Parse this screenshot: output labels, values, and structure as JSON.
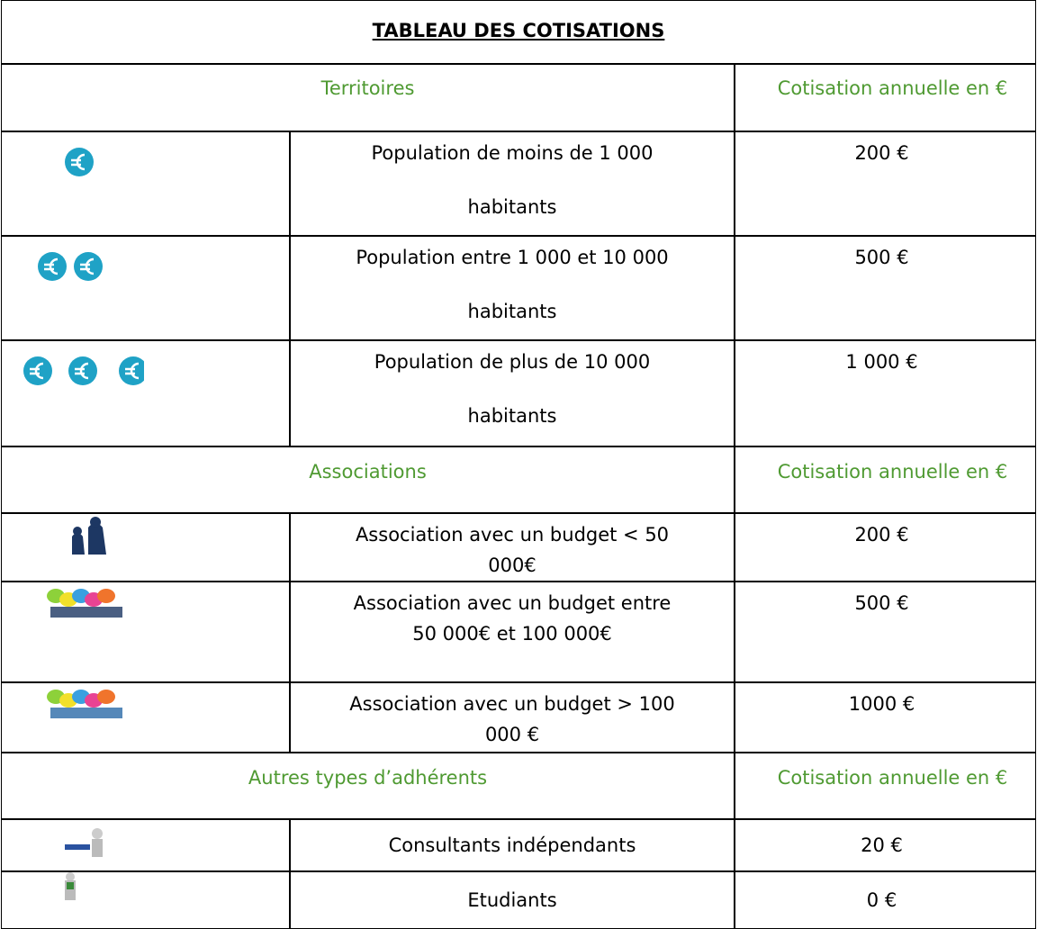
{
  "title": "TABLEAU DES COTISATIONS",
  "sections": [
    {
      "label": "Territoires",
      "column": "Cotisation annuelle en €",
      "rows": [
        {
          "lines": [
            "Population de moins de 1 000",
            "habitants"
          ],
          "amount": "200 €"
        },
        {
          "lines": [
            "Population entre 1 000 et 10 000",
            "habitants"
          ],
          "amount": "500 €"
        },
        {
          "lines": [
            "Population de plus de 10 000",
            "habitants"
          ],
          "amount": "1 000 €"
        }
      ]
    },
    {
      "label": "Associations",
      "column": "Cotisation annuelle en €",
      "rows": [
        {
          "lines": [
            "Association avec un budget < 50",
            "000€"
          ],
          "amount": "200 €"
        },
        {
          "lines": [
            "Association avec un budget entre",
            "50 000€ et 100 000€"
          ],
          "amount": "500 €"
        },
        {
          "lines": [
            "Association avec un budget > 100",
            "000 €"
          ],
          "amount": "1000 €"
        }
      ]
    },
    {
      "label": "Autres types d’adhérents",
      "column": "Cotisation annuelle en €",
      "rows": [
        {
          "lines": [
            "Consultants indépendants"
          ],
          "amount": "20 €"
        },
        {
          "lines": [
            "Etudiants"
          ],
          "amount": "0 €"
        }
      ]
    }
  ]
}
